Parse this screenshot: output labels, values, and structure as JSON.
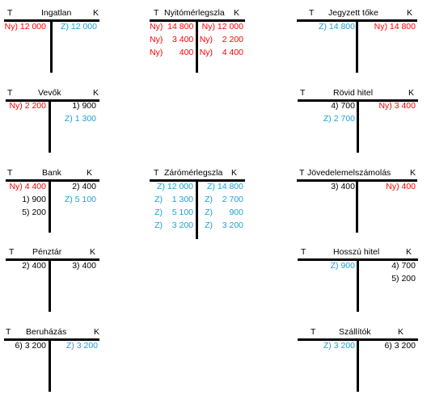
{
  "colors": {
    "red": "#ff0000",
    "blue": "#1fa0d8",
    "black": "#000000"
  },
  "accounts": {
    "ingatlan": {
      "t": "T",
      "title": "Ingatlan",
      "k": "K",
      "left": [
        {
          "text": "Ny) 12 000",
          "color": "red"
        }
      ],
      "right": [
        {
          "text": "Z) 12 000",
          "color": "blue"
        }
      ]
    },
    "nyito": {
      "t": "T",
      "title": "Nyitómérlegszla",
      "k": "K",
      "left": [
        {
          "text": "Ny)  14 800",
          "color": "red"
        },
        {
          "text": "Ny)    3 400",
          "color": "red"
        },
        {
          "text": "Ny)       400",
          "color": "red"
        }
      ],
      "right": [
        {
          "text": "Ny) 12 000",
          "color": "red"
        },
        {
          "text": "Ny)    2 200",
          "color": "red"
        },
        {
          "text": "Ny)    4 400",
          "color": "red"
        }
      ]
    },
    "jegyzett": {
      "t": "T",
      "title": "Jegyzett tőke",
      "k": "K",
      "left": [
        {
          "text": "Z) 14 800",
          "color": "blue"
        }
      ],
      "right": [
        {
          "text": "Ny) 14 800",
          "color": "red"
        }
      ]
    },
    "vevok": {
      "t": "T",
      "title": "Vevők",
      "k": "K",
      "left": [
        {
          "text": "Ny) 2 200",
          "color": "red"
        }
      ],
      "right": [
        {
          "text": "1) 900",
          "color": "black"
        },
        {
          "text": "Z) 1 300",
          "color": "blue"
        }
      ]
    },
    "rovid": {
      "t": "T",
      "title": "Rövid hitel",
      "k": "K",
      "left": [
        {
          "text": "4) 700",
          "color": "black"
        },
        {
          "text": "Z) 2 700",
          "color": "blue"
        }
      ],
      "right": [
        {
          "text": "Ny) 3 400",
          "color": "red"
        }
      ]
    },
    "bank": {
      "t": "T",
      "title": "Bank",
      "k": "K",
      "left": [
        {
          "text": "Ny) 4 400",
          "color": "red"
        },
        {
          "text": "1) 900",
          "color": "black"
        },
        {
          "text": "5) 200",
          "color": "black"
        }
      ],
      "right": [
        {
          "text": "2) 400",
          "color": "black"
        },
        {
          "text": "Z) 5 100",
          "color": "blue"
        }
      ]
    },
    "zaro": {
      "t": "T",
      "title": "Zárómérlegszla",
      "k": "K",
      "left": [
        {
          "text": "Z) 12 000",
          "color": "blue"
        },
        {
          "text": "Z)    1 300",
          "color": "blue"
        },
        {
          "text": "Z)    5 100",
          "color": "blue"
        },
        {
          "text": "Z)    3 200",
          "color": "blue"
        }
      ],
      "right": [
        {
          "text": "Z) 14 800",
          "color": "blue"
        },
        {
          "text": "Z)    2 700",
          "color": "blue"
        },
        {
          "text": "Z)       900",
          "color": "blue"
        },
        {
          "text": "Z)    3 200",
          "color": "blue"
        }
      ]
    },
    "jovedelem": {
      "t": "T",
      "title": "Jövedelemelszámolás",
      "k": "K",
      "left": [
        {
          "text": "3) 400",
          "color": "black"
        }
      ],
      "right": [
        {
          "text": "Ny) 400",
          "color": "red"
        }
      ]
    },
    "penztar": {
      "t": "T",
      "title": "Pénztár",
      "k": "K",
      "left": [
        {
          "text": "2) 400",
          "color": "black"
        }
      ],
      "right": [
        {
          "text": "3) 400",
          "color": "black"
        }
      ]
    },
    "hosszu": {
      "t": "T",
      "title": "Hosszú hitel",
      "k": "K",
      "left": [
        {
          "text": "Z) 900",
          "color": "blue"
        }
      ],
      "right": [
        {
          "text": "4) 700",
          "color": "black"
        },
        {
          "text": "5) 200",
          "color": "black"
        }
      ]
    },
    "beruhazas": {
      "t": "T",
      "title": "Beruházás",
      "k": "K",
      "left": [
        {
          "text": "6) 3 200",
          "color": "black"
        }
      ],
      "right": [
        {
          "text": "Z) 3 200",
          "color": "blue"
        }
      ]
    },
    "szallitok": {
      "t": "T",
      "title": "Szállítók",
      "k": "K",
      "left": [
        {
          "text": "Z) 3 200",
          "color": "blue"
        }
      ],
      "right": [
        {
          "text": "6) 3 200",
          "color": "black"
        }
      ]
    }
  }
}
